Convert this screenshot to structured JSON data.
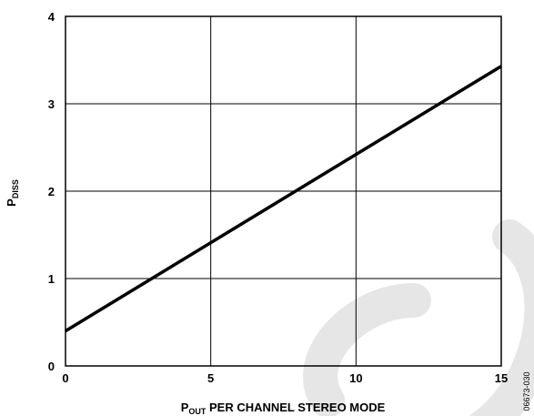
{
  "chart_data": {
    "type": "line",
    "title": "",
    "xlabel": {
      "main": "P",
      "sub": "OUT",
      "rest": " PER CHANNEL STEREO MODE"
    },
    "ylabel": {
      "main": "P",
      "sub": "DISS"
    },
    "xlim": [
      0,
      15
    ],
    "ylim": [
      0,
      4
    ],
    "x_ticks": [
      "0",
      "5",
      "10",
      "15"
    ],
    "y_ticks": [
      "0",
      "1",
      "2",
      "3",
      "4"
    ],
    "grid": true,
    "legend": "none",
    "series": [
      {
        "x": [
          0,
          15
        ],
        "y": [
          0.4,
          3.43
        ],
        "color": "#000000"
      }
    ],
    "figure_code": "06673-030"
  },
  "watermark": {
    "text": "SC",
    "color": "#e6e6e6"
  }
}
